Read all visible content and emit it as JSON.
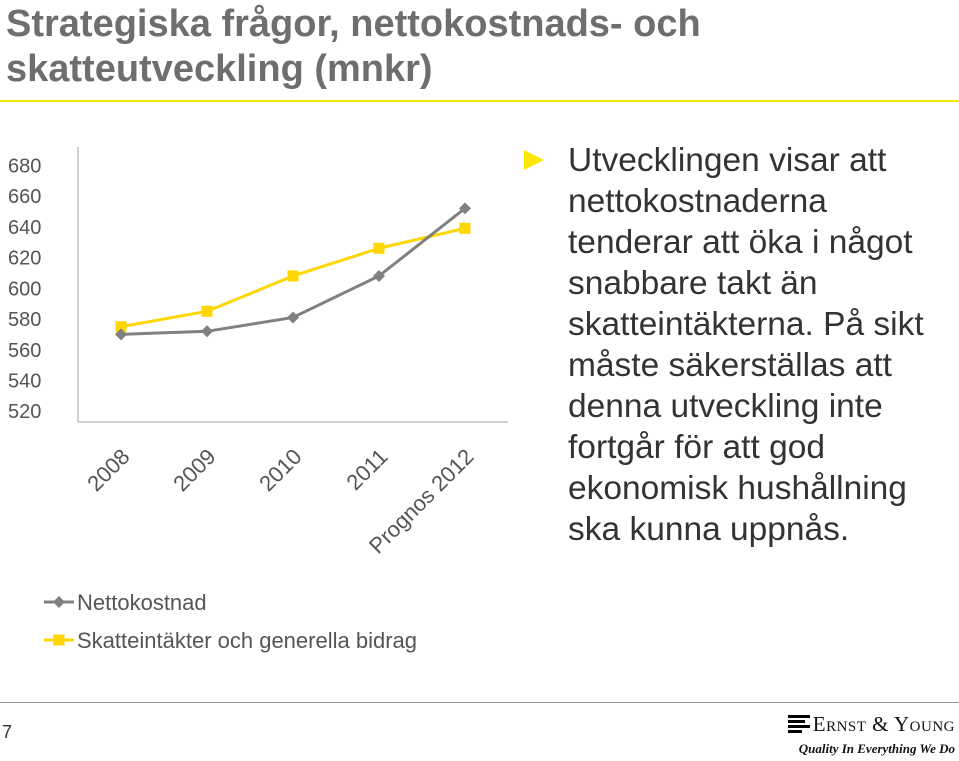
{
  "title": "Strategiska frågor, nettokostnads- och skatteutveckling (mnkr)",
  "bullet": "Utvecklingen visar att nettokostnaderna tenderar att öka i något snabbare takt än skatteintäkterna. På sikt måste säkerställas att denna utveckling inte fortgår för att god ekonomisk hushållning ska kunna uppnås.",
  "page_number": "7",
  "logo": {
    "name": "Ernst & Young",
    "tagline": "Quality In Everything We Do"
  },
  "colors": {
    "accent": "#ffe600",
    "nettokostnad": "#808080",
    "skatteintakter": "#ffd700"
  },
  "chart_data": {
    "type": "line",
    "categories": [
      "2008",
      "2009",
      "2010",
      "2011",
      "Prognos 2012"
    ],
    "series": [
      {
        "name": "Nettokostnad",
        "values": [
          570,
          572,
          581,
          608,
          652
        ],
        "color": "#808080",
        "marker": "diamond"
      },
      {
        "name": "Skatteintäkter och generella bidrag",
        "values": [
          575,
          585,
          608,
          626,
          639
        ],
        "color": "#ffd700",
        "marker": "square"
      }
    ],
    "yticks": [
      680,
      660,
      640,
      620,
      600,
      580,
      560,
      540,
      520
    ],
    "ylim": [
      513,
      688
    ],
    "title": "",
    "xlabel": "",
    "ylabel": "",
    "legend_position": "bottom",
    "grid": false
  }
}
